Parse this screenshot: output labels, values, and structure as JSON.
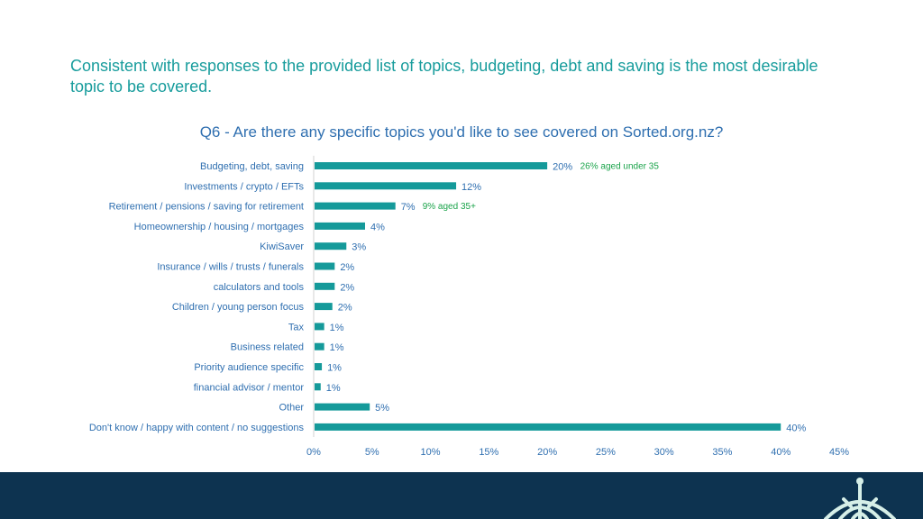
{
  "headline": "Consistent with responses to the provided list of topics, budgeting, debt and saving is the most desirable topic to be covered.",
  "colors": {
    "bar": "#159a9a",
    "label": "#2f6fb0",
    "annotation": "#1aa34a",
    "footer": "#0d3350"
  },
  "chart_data": {
    "type": "bar",
    "orientation": "horizontal",
    "title": "Q6 - Are there any specific topics you'd like to see covered on Sorted.org.nz?",
    "categories": [
      "Budgeting, debt, saving",
      "Investments / crypto / EFTs",
      "Retirement  / pensions / saving for retirement",
      "Homeownership / housing / mortgages",
      "KiwiSaver",
      "Insurance / wills / trusts / funerals",
      "calculators and tools",
      "Children / young person focus",
      "Tax",
      "Business related",
      "Priority audience specific",
      "financial advisor / mentor",
      "Other",
      "Don't know / happy with content / no suggestions"
    ],
    "values": [
      20,
      12.2,
      7,
      4.4,
      2.8,
      1.8,
      1.8,
      1.6,
      0.9,
      0.9,
      0.7,
      0.6,
      4.8,
      40
    ],
    "data_labels": [
      "20%",
      "12%",
      "7%",
      "4%",
      "3%",
      "2%",
      "2%",
      "2%",
      "1%",
      "1%",
      "1%",
      "1%",
      "5%",
      "40%"
    ],
    "annotations": [
      {
        "category_index": 0,
        "text": "26% aged under 35"
      },
      {
        "category_index": 2,
        "text": "9% aged 35+"
      }
    ],
    "xlim": [
      0,
      45
    ],
    "xticks": [
      0,
      5,
      10,
      15,
      20,
      25,
      30,
      35,
      40,
      45
    ],
    "xtick_labels": [
      "0%",
      "5%",
      "10%",
      "15%",
      "20%",
      "25%",
      "30%",
      "35%",
      "40%",
      "45%"
    ],
    "grid": false,
    "legend": "none"
  }
}
